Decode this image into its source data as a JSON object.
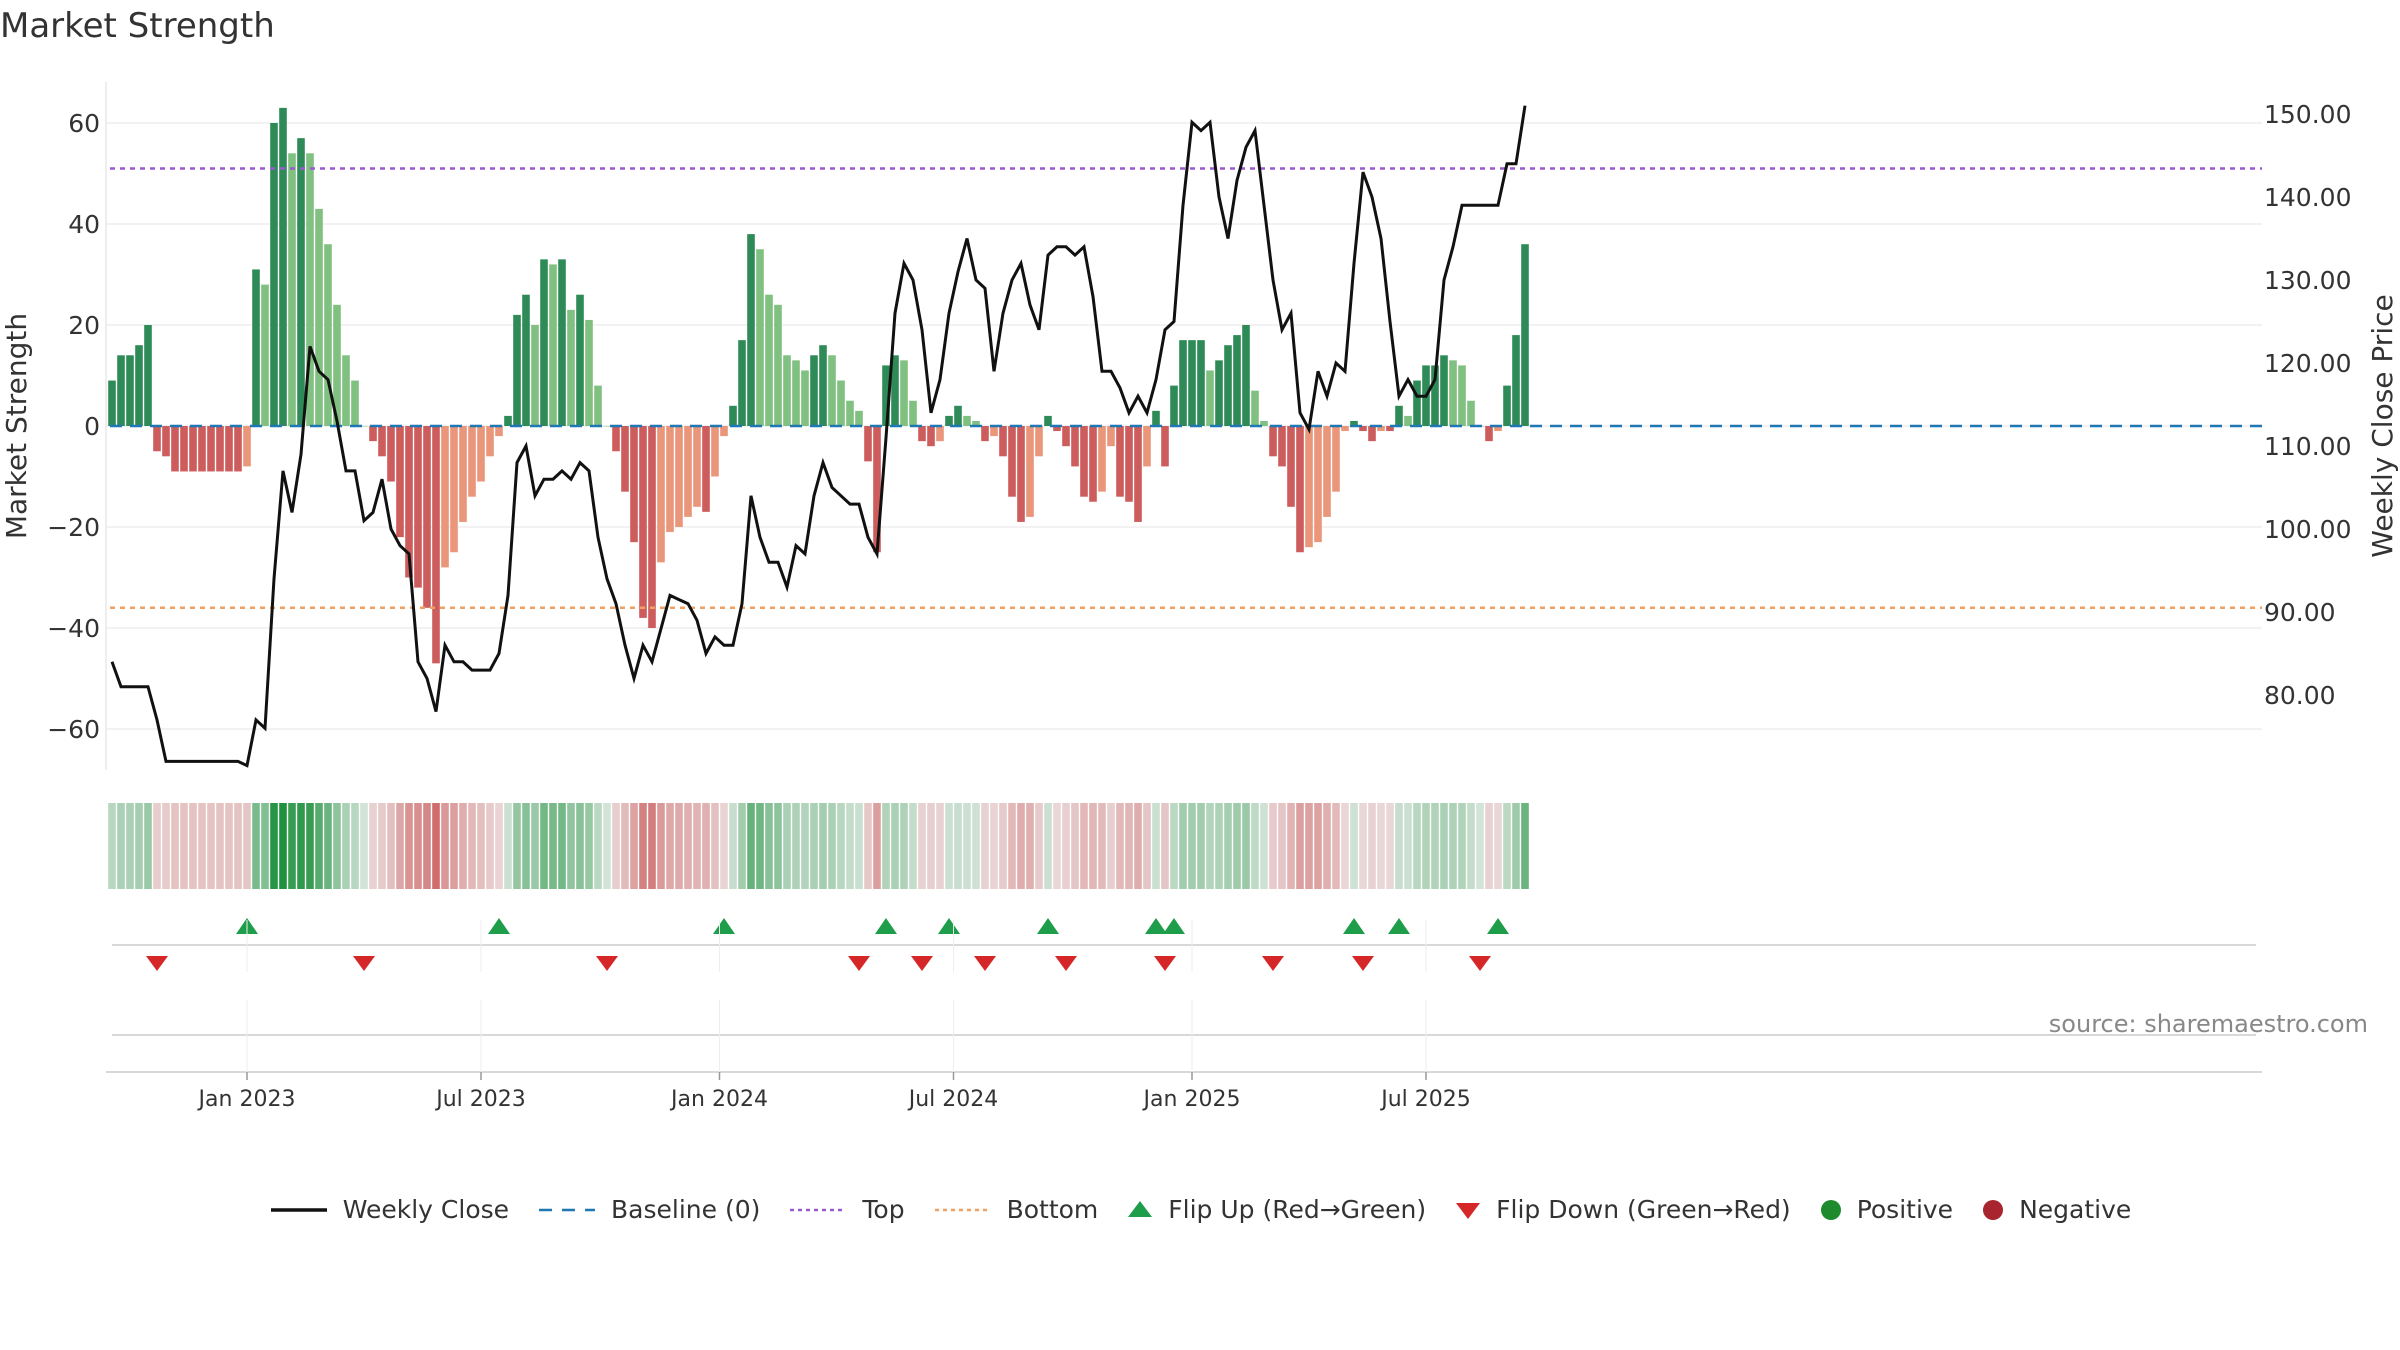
{
  "chart_data": {
    "type": "bar",
    "title": "Market Strength",
    "ylabel_left": "Market Strength",
    "ylabel_right": "Weekly Close Price",
    "ylim_left": [
      -69,
      69
    ],
    "ylim_right": [
      71.4,
      152.5
    ],
    "left_ticks": [
      60,
      40,
      20,
      0,
      -20,
      -40,
      -60
    ],
    "left_tick_labels": [
      "60",
      "40",
      "20",
      "0",
      "−20",
      "−40",
      "−60"
    ],
    "right_ticks": [
      150,
      140,
      130,
      120,
      110,
      100,
      90,
      80
    ],
    "right_tick_labels": [
      "150.00",
      "140.00",
      "130.00",
      "120.00",
      "110.00",
      "100.00",
      "90.00",
      "80.00"
    ],
    "top_level": 51,
    "bottom_level": -36,
    "x_tick_labels": [
      {
        "label": "Jan 2023",
        "index": 15
      },
      {
        "label": "Jul 2023",
        "index": 41
      },
      {
        "label": "Jan 2024",
        "index": 67.5
      },
      {
        "label": "Jul 2024",
        "index": 93.5
      },
      {
        "label": "Jan 2025",
        "index": 120
      },
      {
        "label": "Jul 2025",
        "index": 146
      }
    ],
    "strength": [
      9,
      14,
      14,
      16,
      20,
      -5,
      -6,
      -9,
      -9,
      -9,
      -9,
      -9,
      -9,
      -9,
      -9,
      -8,
      31,
      28,
      60,
      63,
      54,
      57,
      54,
      43,
      36,
      24,
      14,
      9,
      0,
      -3,
      -6,
      -11,
      -22,
      -30,
      -32,
      -36,
      -47,
      -28,
      -25,
      -19,
      -14,
      -11,
      -6,
      -2,
      2,
      22,
      26,
      20,
      33,
      32,
      33,
      23,
      26,
      21,
      8,
      0,
      -5,
      -13,
      -23,
      -38,
      -40,
      -27,
      -21,
      -20,
      -18,
      -16,
      -17,
      -10,
      -2,
      4,
      17,
      38,
      35,
      26,
      24,
      14,
      13,
      11,
      14,
      16,
      14,
      9,
      5,
      3,
      -7,
      -25,
      12,
      14,
      13,
      5,
      -3,
      -4,
      -3,
      2,
      4,
      2,
      1,
      -3,
      -2,
      -6,
      -14,
      -19,
      -18,
      -6,
      2,
      -1,
      -4,
      -8,
      -14,
      -15,
      -13,
      -4,
      -14,
      -15,
      -19,
      -8,
      3,
      -8,
      8,
      17,
      17,
      17,
      11,
      13,
      16,
      18,
      20,
      7,
      1,
      -6,
      -8,
      -16,
      -25,
      -24,
      -23,
      -18,
      -13,
      -1,
      1,
      -1,
      -3,
      -1,
      -1,
      4,
      2,
      9,
      12,
      12,
      14,
      13,
      12,
      5,
      0,
      -3,
      -1,
      8,
      18,
      36
    ],
    "weekly_close": [
      84,
      81,
      81,
      81,
      81,
      77,
      72,
      72,
      72,
      72,
      72,
      72,
      72,
      72,
      72,
      71.5,
      77,
      76,
      94,
      107,
      102,
      109,
      122,
      119,
      118,
      113,
      107,
      107,
      101,
      102,
      106,
      100,
      98,
      97,
      84,
      82,
      78,
      86,
      84,
      84,
      83,
      83,
      83,
      85,
      92,
      108,
      110,
      104,
      106,
      106,
      107,
      106,
      108,
      107,
      99,
      94,
      91,
      86,
      82,
      86,
      84,
      88,
      92,
      91.5,
      91,
      89,
      85,
      87,
      86,
      86,
      91,
      104,
      99,
      96,
      96,
      93,
      98,
      97,
      104,
      108,
      105,
      104,
      103,
      103,
      99,
      97,
      111,
      126,
      132,
      130,
      124,
      114,
      118,
      126,
      131,
      135,
      130,
      129,
      119,
      126,
      130,
      132,
      127,
      124,
      133,
      134,
      134,
      133,
      134,
      128,
      119,
      119,
      117,
      114,
      116,
      114,
      118,
      124,
      125,
      139,
      149,
      148,
      149,
      140,
      135,
      142,
      146,
      148,
      139,
      130,
      124,
      126,
      114,
      112,
      119,
      116,
      120,
      119,
      132,
      143,
      140,
      135,
      125,
      116,
      118,
      116,
      116,
      118,
      130,
      134,
      139,
      139,
      139,
      139,
      139,
      144,
      144,
      151
    ],
    "flip_up_indices": [
      15,
      43,
      68,
      86,
      93,
      104,
      116,
      118,
      138,
      143,
      154
    ],
    "flip_down_indices": [
      5,
      28,
      55,
      83,
      90,
      97,
      106,
      117,
      129,
      139,
      152
    ],
    "legend": [
      {
        "key": "weekly_close",
        "label": "Weekly Close",
        "color": "#111111"
      },
      {
        "key": "baseline",
        "label": "Baseline (0)",
        "color": "#1f77b4"
      },
      {
        "key": "top",
        "label": "Top",
        "color": "#9b59d0"
      },
      {
        "key": "bottom",
        "label": "Bottom",
        "color": "#f0a060"
      },
      {
        "key": "flip_up",
        "label": "Flip Up (Red→Green)",
        "color": "#1e9e4a"
      },
      {
        "key": "flip_down",
        "label": "Flip Down (Green→Red)",
        "color": "#d62728"
      },
      {
        "key": "positive",
        "label": "Positive",
        "color": "#1e8a2e"
      },
      {
        "key": "negative",
        "label": "Negative",
        "color": "#a8242e"
      }
    ],
    "colors": {
      "positive_strong": "#2e8b57",
      "positive_weak": "#80c080",
      "negative_strong": "#cd5c5c",
      "negative_weak": "#e9967a",
      "price_line": "#111111",
      "grid": "#e6e6e6"
    }
  },
  "source": "source: sharemaestro.com"
}
